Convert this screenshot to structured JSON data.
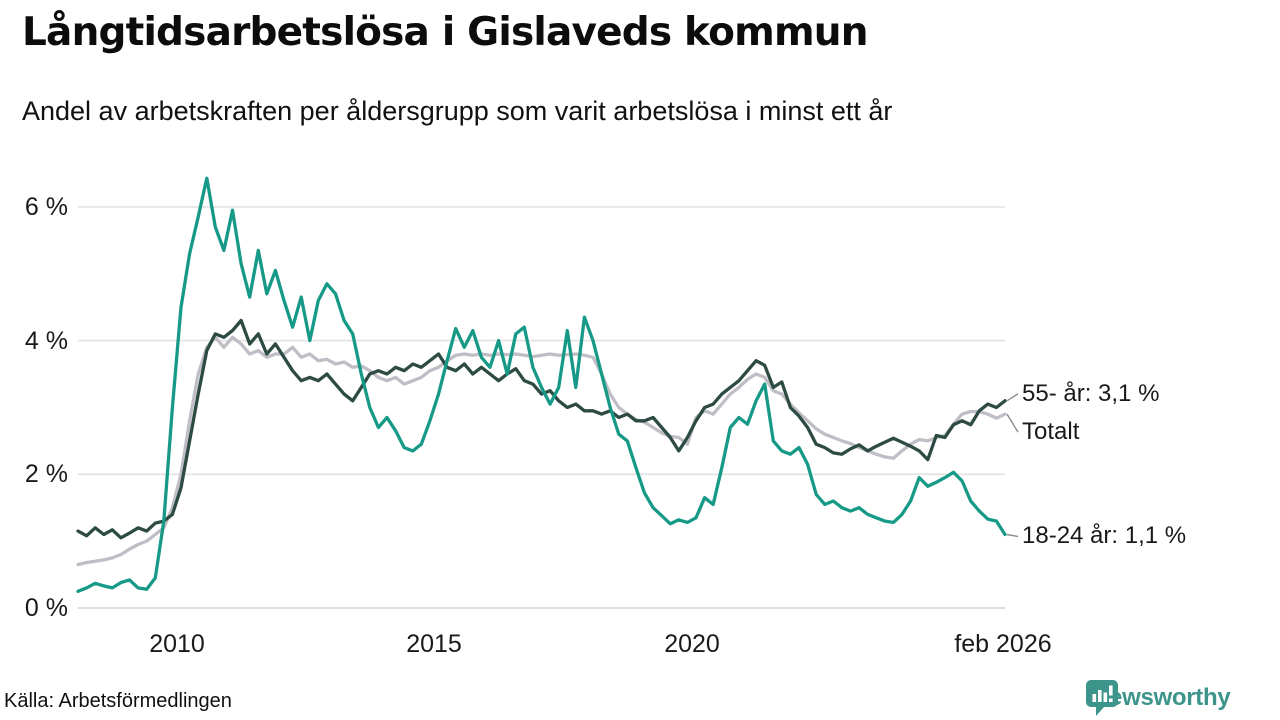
{
  "header": {
    "title": "Långtidsarbetslösa i Gislaveds kommun",
    "subtitle": "Andel av arbetskraften per åldersgrupp som varit arbetslösa i minst ett år"
  },
  "footer": {
    "source": "Källa: Arbetsförmedlingen",
    "brand": "Newsworthy"
  },
  "colors": {
    "teal_line": "#169a87",
    "dark_line": "#2d4b43",
    "gray_line": "#bfbec6",
    "gridline": "#e2e2e2",
    "baseline": "#d4d4d4",
    "connector": "#8a8a8a",
    "brand_teal": "#3d948b",
    "text": "#1a1a1a"
  },
  "chart_data": {
    "type": "line",
    "title": "Långtidsarbetslösa i Gislaveds kommun",
    "subtitle": "Andel av arbetskraften per åldersgrupp som varit arbetslösa i minst ett år",
    "xlabel": "",
    "ylabel": "",
    "unit": "%",
    "grid": true,
    "legend_position": "end-of-line",
    "ylim": [
      0,
      6.6
    ],
    "x_domain_years": [
      2008.083,
      2026.083
    ],
    "x_step_years": 0.1667,
    "y_ticks": [
      {
        "value": 0,
        "label": "0 %"
      },
      {
        "value": 2,
        "label": "2 %"
      },
      {
        "value": 4,
        "label": "4 %"
      },
      {
        "value": 6,
        "label": "6 %"
      }
    ],
    "x_ticks": [
      {
        "year": 2010.0,
        "label": "2010"
      },
      {
        "year": 2015.0,
        "label": "2015"
      },
      {
        "year": 2020.0,
        "label": "2020"
      },
      {
        "year": 2026.05,
        "label": "feb 2026"
      }
    ],
    "series": [
      {
        "name": "Totalt",
        "slug": "totalt",
        "color": "#bfbec6",
        "end_value": 2.9,
        "values": [
          0.65,
          0.68,
          0.7,
          0.72,
          0.75,
          0.8,
          0.88,
          0.95,
          1.0,
          1.1,
          1.2,
          1.5,
          2.0,
          2.8,
          3.5,
          3.9,
          4.05,
          3.9,
          4.05,
          3.95,
          3.8,
          3.85,
          3.75,
          3.8,
          3.8,
          3.9,
          3.75,
          3.8,
          3.7,
          3.72,
          3.65,
          3.68,
          3.6,
          3.62,
          3.55,
          3.45,
          3.4,
          3.45,
          3.35,
          3.4,
          3.45,
          3.55,
          3.6,
          3.7,
          3.78,
          3.8,
          3.78,
          3.8,
          3.78,
          3.8,
          3.79,
          3.8,
          3.78,
          3.76,
          3.78,
          3.8,
          3.78,
          3.79,
          3.8,
          3.78,
          3.75,
          3.5,
          3.2,
          3.0,
          2.9,
          2.82,
          2.78,
          2.7,
          2.62,
          2.57,
          2.55,
          2.45,
          2.85,
          2.95,
          2.9,
          3.05,
          3.2,
          3.3,
          3.42,
          3.5,
          3.45,
          3.25,
          3.2,
          3.05,
          2.92,
          2.8,
          2.68,
          2.6,
          2.55,
          2.5,
          2.46,
          2.4,
          2.35,
          2.3,
          2.26,
          2.24,
          2.35,
          2.45,
          2.52,
          2.5,
          2.55,
          2.58,
          2.75,
          2.9,
          2.94,
          2.94,
          2.9,
          2.84,
          2.9
        ]
      },
      {
        "name": "55- år",
        "slug": "55-ar",
        "color": "#2d4b43",
        "end_value": 3.1,
        "values": [
          1.15,
          1.08,
          1.2,
          1.1,
          1.17,
          1.05,
          1.12,
          1.2,
          1.15,
          1.27,
          1.3,
          1.4,
          1.8,
          2.5,
          3.2,
          3.85,
          4.1,
          4.05,
          4.15,
          4.3,
          3.95,
          4.1,
          3.8,
          3.95,
          3.75,
          3.55,
          3.4,
          3.45,
          3.4,
          3.5,
          3.35,
          3.2,
          3.1,
          3.3,
          3.5,
          3.55,
          3.5,
          3.6,
          3.55,
          3.65,
          3.6,
          3.7,
          3.8,
          3.6,
          3.55,
          3.65,
          3.5,
          3.6,
          3.5,
          3.4,
          3.5,
          3.58,
          3.4,
          3.35,
          3.2,
          3.25,
          3.1,
          3.0,
          3.05,
          2.95,
          2.95,
          2.9,
          2.95,
          2.85,
          2.9,
          2.8,
          2.8,
          2.85,
          2.7,
          2.55,
          2.35,
          2.55,
          2.8,
          3.0,
          3.05,
          3.2,
          3.3,
          3.4,
          3.55,
          3.7,
          3.63,
          3.3,
          3.38,
          3.0,
          2.87,
          2.7,
          2.45,
          2.4,
          2.32,
          2.3,
          2.38,
          2.44,
          2.35,
          2.42,
          2.48,
          2.54,
          2.48,
          2.42,
          2.35,
          2.22,
          2.58,
          2.55,
          2.74,
          2.8,
          2.74,
          2.95,
          3.05,
          3.0,
          3.1
        ]
      },
      {
        "name": "18-24 år",
        "slug": "18-24-ar",
        "color": "#169a87",
        "end_value": 1.1,
        "values": [
          0.25,
          0.3,
          0.37,
          0.33,
          0.3,
          0.38,
          0.42,
          0.3,
          0.28,
          0.45,
          1.3,
          3.0,
          4.5,
          5.3,
          5.85,
          6.43,
          5.7,
          5.35,
          5.95,
          5.15,
          4.65,
          5.35,
          4.7,
          5.05,
          4.6,
          4.2,
          4.65,
          4.0,
          4.6,
          4.85,
          4.7,
          4.3,
          4.1,
          3.5,
          3.0,
          2.7,
          2.85,
          2.65,
          2.4,
          2.35,
          2.45,
          2.8,
          3.2,
          3.7,
          4.18,
          3.9,
          4.15,
          3.75,
          3.6,
          4.0,
          3.5,
          4.1,
          4.2,
          3.6,
          3.3,
          3.05,
          3.3,
          4.15,
          3.3,
          4.35,
          4.0,
          3.5,
          3.0,
          2.6,
          2.5,
          2.1,
          1.72,
          1.5,
          1.38,
          1.26,
          1.32,
          1.28,
          1.35,
          1.65,
          1.55,
          2.1,
          2.7,
          2.85,
          2.75,
          3.1,
          3.35,
          2.5,
          2.35,
          2.3,
          2.4,
          2.15,
          1.7,
          1.55,
          1.6,
          1.5,
          1.45,
          1.5,
          1.4,
          1.35,
          1.3,
          1.28,
          1.4,
          1.6,
          1.95,
          1.82,
          1.88,
          1.95,
          2.03,
          1.9,
          1.6,
          1.45,
          1.33,
          1.3,
          1.1
        ]
      }
    ],
    "annotations": [
      {
        "series": "55- år",
        "text": "55- år: 3,1 %",
        "dy": -7
      },
      {
        "series": "Totalt",
        "text": "Totalt",
        "dy": 18
      },
      {
        "series": "18-24 år",
        "text": "18-24 år: 1,1 %",
        "dy": 2
      }
    ]
  }
}
